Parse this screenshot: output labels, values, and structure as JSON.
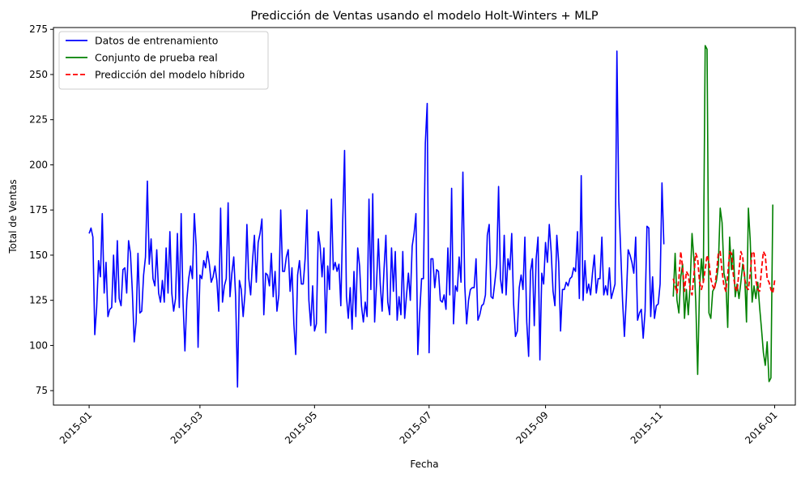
{
  "chart_data": {
    "type": "line",
    "title": "Predicción de Ventas usando el modelo Holt-Winters + MLP",
    "xlabel": "Fecha",
    "ylabel": "Total de Ventas",
    "xlim": [
      "2014-12-13",
      "2016-01-12"
    ],
    "ylim": [
      67,
      276
    ],
    "y_ticks": [
      75,
      100,
      125,
      150,
      175,
      200,
      225,
      250,
      275
    ],
    "x_ticks": [
      "2015-01",
      "2015-03",
      "2015-05",
      "2015-07",
      "2015-09",
      "2015-11",
      "2016-01"
    ],
    "x_tick_dates": [
      "2015-01-01",
      "2015-03-01",
      "2015-05-01",
      "2015-07-01",
      "2015-09-01",
      "2015-11-01",
      "2016-01-01"
    ],
    "grid": false,
    "legend_position": "top-left",
    "series": [
      {
        "name": "Datos de entrenamiento",
        "color": "#0000ff",
        "style": "solid",
        "start_date": "2015-01-01",
        "values": [
          162,
          165,
          160,
          106,
          121,
          147,
          138,
          173,
          129,
          146,
          116,
          120,
          121,
          150,
          124,
          158,
          126,
          122,
          142,
          143,
          129,
          158,
          151,
          130,
          102,
          113,
          151,
          118,
          119,
          139,
          149,
          191,
          145,
          159,
          137,
          133,
          153,
          129,
          124,
          136,
          124,
          154,
          129,
          163,
          129,
          119,
          126,
          162,
          121,
          173,
          124,
          97,
          125,
          137,
          144,
          137,
          173,
          155,
          99,
          139,
          137,
          147,
          143,
          152,
          145,
          135,
          138,
          144,
          136,
          119,
          176,
          124,
          133,
          137,
          179,
          127,
          140,
          149,
          127,
          77,
          136,
          131,
          116,
          129,
          167,
          137,
          128,
          147,
          161,
          135,
          157,
          162,
          170,
          117,
          140,
          139,
          133,
          151,
          127,
          141,
          119,
          128,
          175,
          141,
          141,
          149,
          153,
          130,
          143,
          112,
          95,
          139,
          147,
          134,
          134,
          148,
          175,
          125,
          111,
          133,
          108,
          112,
          163,
          155,
          138,
          154,
          107,
          144,
          131,
          181,
          142,
          146,
          141,
          145,
          122,
          168,
          208,
          127,
          115,
          132,
          109,
          141,
          116,
          154,
          144,
          122,
          113,
          124,
          116,
          181,
          131,
          184,
          113,
          134,
          159,
          134,
          119,
          142,
          161,
          124,
          117,
          154,
          130,
          152,
          114,
          127,
          117,
          152,
          115,
          128,
          140,
          125,
          155,
          162,
          173,
          95,
          118,
          137,
          137,
          212,
          234,
          96,
          148,
          148,
          132,
          142,
          141,
          125,
          124,
          128,
          120,
          154,
          128,
          187,
          112,
          133,
          130,
          149,
          135,
          196,
          133,
          112,
          125,
          131,
          132,
          132,
          148,
          114,
          117,
          122,
          123,
          128,
          161,
          167,
          127,
          126,
          135,
          145,
          188,
          137,
          129,
          161,
          128,
          148,
          142,
          162,
          123,
          105,
          108,
          132,
          139,
          131,
          160,
          113,
          94,
          141,
          148,
          111,
          148,
          160,
          92,
          140,
          134,
          157,
          146,
          167,
          152,
          130,
          122,
          161,
          146,
          108,
          131,
          131,
          135,
          133,
          137,
          138,
          143,
          141,
          163,
          126,
          194,
          125,
          147,
          129,
          134,
          128,
          140,
          150,
          129,
          137,
          137,
          160,
          128,
          133,
          128,
          143,
          126,
          130,
          134,
          263,
          180,
          153,
          125,
          105,
          126,
          153,
          150,
          146,
          140,
          160,
          114,
          118,
          120,
          104,
          119,
          166,
          165,
          116,
          138,
          115,
          122,
          123,
          134,
          190,
          156
        ]
      },
      {
        "name": "Conjunto de prueba real",
        "color": "#008000",
        "style": "solid",
        "start_date": "2015-11-08",
        "values": [
          127,
          151,
          125,
          118,
          138,
          145,
          115,
          131,
          117,
          134,
          162,
          148,
          124,
          84,
          132,
          148,
          135,
          266,
          264,
          118,
          115,
          130,
          132,
          136,
          144,
          176,
          168,
          140,
          135,
          110,
          160,
          142,
          153,
          127,
          134,
          126,
          135,
          145,
          139,
          113,
          176,
          158,
          124,
          133,
          126,
          135,
          121,
          109,
          96,
          89,
          102,
          80,
          82,
          178
        ]
      },
      {
        "name": "Predicción del modelo híbrido",
        "color": "#ff0000",
        "style": "dashed",
        "start_date": "2015-11-08",
        "values": [
          137,
          133,
          129,
          137,
          152,
          143,
          130,
          141,
          139,
          131,
          128,
          139,
          151,
          148,
          135,
          131,
          135,
          142,
          150,
          146,
          137,
          133,
          131,
          140,
          151,
          152,
          141,
          133,
          130,
          139,
          152,
          151,
          139,
          132,
          130,
          141,
          152,
          149,
          137,
          132,
          131,
          140,
          152,
          151,
          136,
          131,
          130,
          142,
          152,
          150,
          137,
          135,
          131,
          129,
          136
        ]
      }
    ]
  }
}
